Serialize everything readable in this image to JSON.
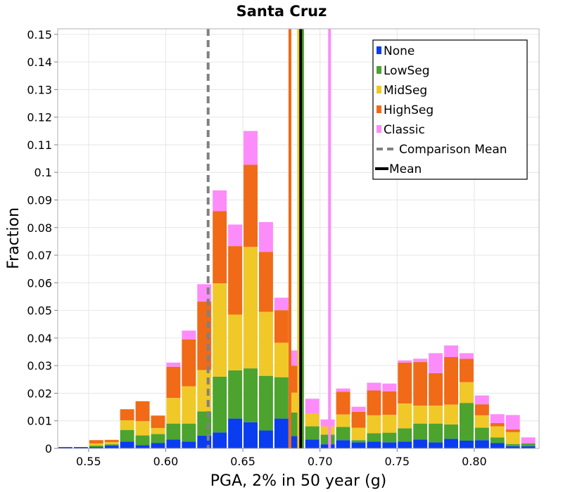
{
  "chart_data": {
    "type": "bar",
    "stacked": true,
    "title": "Santa Cruz",
    "xlabel": "PGA, 2% in 50 year (g)",
    "ylabel": "Fraction",
    "xlim": [
      0.53,
      0.842
    ],
    "ylim": [
      0,
      0.152
    ],
    "bin_width": 0.01,
    "x_ticks": [
      "0.55",
      "0.60",
      "0.65",
      "0.70",
      "0.75",
      "0.80"
    ],
    "x_tick_values": [
      0.55,
      0.6,
      0.65,
      0.7,
      0.75,
      0.8
    ],
    "y_ticks": [
      "0",
      "0.01",
      "0.02",
      "0.03",
      "0.04",
      "0.05",
      "0.06",
      "0.07",
      "0.08",
      "0.09",
      "0.1",
      "0.11",
      "0.12",
      "0.13",
      "0.14",
      "0.15"
    ],
    "y_tick_values": [
      0,
      0.01,
      0.02,
      0.03,
      0.04,
      0.05,
      0.06,
      0.07,
      0.08,
      0.09,
      0.1,
      0.11,
      0.12,
      0.13,
      0.14,
      0.15
    ],
    "grid": true,
    "legend_position": "top-right",
    "bin_centers": [
      0.535,
      0.545,
      0.555,
      0.565,
      0.575,
      0.585,
      0.595,
      0.605,
      0.615,
      0.625,
      0.635,
      0.645,
      0.655,
      0.665,
      0.675,
      0.685,
      0.695,
      0.705,
      0.715,
      0.725,
      0.735,
      0.745,
      0.755,
      0.765,
      0.775,
      0.785,
      0.795,
      0.805,
      0.815,
      0.825,
      0.835
    ],
    "series": [
      {
        "name": "None",
        "color": "#0a3cf0",
        "values": [
          0.0005,
          0.0005,
          0.0005,
          0.001,
          0.0025,
          0.0012,
          0.002,
          0.0032,
          0.0025,
          0.0046,
          0.0058,
          0.0108,
          0.0095,
          0.0065,
          0.0108,
          0.0045,
          0.0032,
          0.0015,
          0.003,
          0.0022,
          0.0025,
          0.0022,
          0.0025,
          0.0032,
          0.0022,
          0.0035,
          0.0028,
          0.003,
          0.002,
          0.0008,
          0.0008
        ]
      },
      {
        "name": "LowSeg",
        "color": "#4ca32e",
        "values": [
          0,
          0,
          0.0005,
          0.0005,
          0.0042,
          0.0035,
          0.0032,
          0.0058,
          0.0065,
          0.0088,
          0.0202,
          0.0175,
          0.0195,
          0.0198,
          0.015,
          0.0085,
          0.0048,
          0.0035,
          0.0048,
          0.0008,
          0.003,
          0.0035,
          0.0048,
          0.0058,
          0.0068,
          0.0052,
          0.0137,
          0.0045,
          0.002,
          0.0008,
          0.001
        ]
      },
      {
        "name": "MidSeg",
        "color": "#f0c828",
        "values": [
          0,
          0,
          0.0008,
          0.0008,
          0.0035,
          0.0052,
          0.0022,
          0.0093,
          0.0135,
          0.015,
          0.0338,
          0.0202,
          0.044,
          0.0232,
          0.0125,
          0.0072,
          0.0045,
          0.003,
          0.0045,
          0.0045,
          0.0065,
          0.0065,
          0.009,
          0.0065,
          0.0065,
          0.0072,
          0.0075,
          0.0045,
          0.004,
          0.0043,
          0
        ]
      },
      {
        "name": "HighSeg",
        "color": "#f06a18",
        "values": [
          0,
          0,
          0.0012,
          0.0008,
          0.004,
          0.0072,
          0.0045,
          0.0113,
          0.017,
          0.0248,
          0.0262,
          0.0248,
          0.0298,
          0.0217,
          0.0118,
          0.0098,
          0,
          0,
          0.0082,
          0.0058,
          0.009,
          0.0085,
          0.0148,
          0.0158,
          0.0118,
          0.0172,
          0.0085,
          0.004,
          0.0012,
          0.001,
          0
        ]
      },
      {
        "name": "Classic",
        "color": "#fc8cfa",
        "values": [
          0,
          0,
          0,
          0,
          0,
          0,
          0,
          0.0015,
          0.0032,
          0.0063,
          0.0075,
          0.0078,
          0.0122,
          0.0108,
          0.0045,
          0.0055,
          0.0055,
          0.0025,
          0.0012,
          0.0018,
          0.0028,
          0.0028,
          0.0008,
          0.0012,
          0.0072,
          0.0042,
          0.002,
          0.0032,
          0.0032,
          0.0052,
          0.0022
        ]
      }
    ],
    "vertical_lines": [
      {
        "name": "Comparison Mean",
        "x": 0.6275,
        "color": "#808080",
        "style": "dashed"
      },
      {
        "name": "HighSeg mean",
        "x": 0.6805,
        "color": "#f06a18",
        "style": "solid"
      },
      {
        "name": "MidSeg mean",
        "x": 0.6862,
        "color": "#f0c828",
        "style": "solid"
      },
      {
        "name": "LowSeg mean",
        "x": 0.6887,
        "color": "#4ca32e",
        "style": "solid"
      },
      {
        "name": "Classic mean",
        "x": 0.7062,
        "color": "#fc8cfa",
        "style": "solid"
      },
      {
        "name": "Mean",
        "x": 0.6875,
        "color": "#000000",
        "style": "solid"
      }
    ],
    "legend": [
      {
        "label": "None",
        "color": "#0a3cf0",
        "kind": "box"
      },
      {
        "label": "LowSeg",
        "color": "#4ca32e",
        "kind": "box"
      },
      {
        "label": "MidSeg",
        "color": "#f0c828",
        "kind": "box"
      },
      {
        "label": "HighSeg",
        "color": "#f06a18",
        "kind": "box"
      },
      {
        "label": "Classic",
        "color": "#fc8cfa",
        "kind": "box"
      },
      {
        "label": "Comparison Mean",
        "color": "#808080",
        "kind": "dashed"
      },
      {
        "label": "Mean",
        "color": "#000000",
        "kind": "line"
      }
    ]
  }
}
